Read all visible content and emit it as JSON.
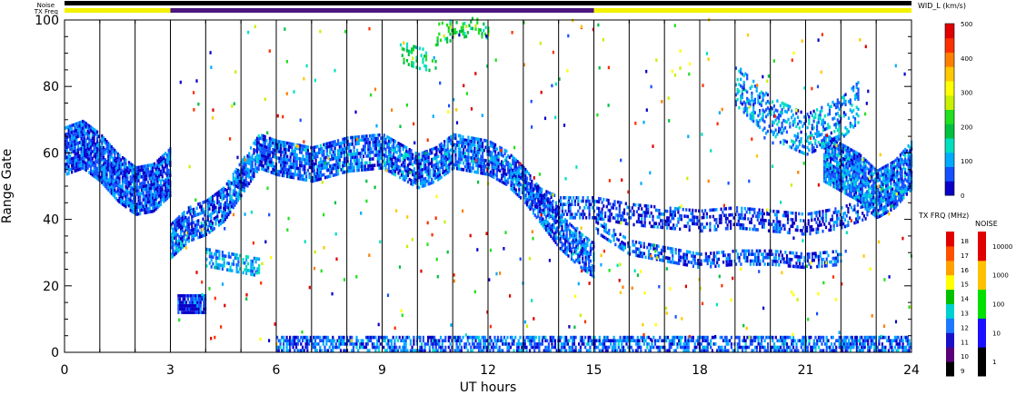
{
  "header": {
    "noise_label": "Noise",
    "txfreq_label": "TX Freq",
    "width_label": "WID_L (km/s)"
  },
  "chart_data": {
    "type": "heatmap",
    "xlabel": "UT hours",
    "ylabel": "Range Gate",
    "xlim": [
      0,
      24
    ],
    "ylim": [
      0,
      100
    ],
    "x_ticks": [
      "0",
      "3",
      "6",
      "9",
      "12",
      "15",
      "18",
      "21",
      "24"
    ],
    "y_ticks": [
      "0",
      "20",
      "40",
      "60",
      "80",
      "100"
    ],
    "hour_lines": [
      1,
      2,
      3,
      4,
      5,
      6,
      7,
      8,
      9,
      10,
      11,
      12,
      13,
      14,
      15,
      16,
      17,
      18,
      19,
      20,
      21,
      22,
      23
    ],
    "noise_bar": [
      {
        "start": 0,
        "end": 24,
        "color": "#000000"
      }
    ],
    "txfreq_bar": [
      {
        "start": 0,
        "end": 3,
        "color": "#f2f200"
      },
      {
        "start": 3,
        "end": 15,
        "color": "#4b1780"
      },
      {
        "start": 15,
        "end": 24,
        "color": "#f2f200"
      }
    ],
    "bands": [
      {
        "points": [
          [
            0,
            60
          ],
          [
            0.5,
            62
          ],
          [
            1,
            58
          ],
          [
            1.5,
            52
          ],
          [
            2,
            48
          ],
          [
            2.5,
            49
          ],
          [
            3,
            54
          ]
        ],
        "width": 14,
        "density": 0.9,
        "value": 60
      },
      {
        "points": [
          [
            3,
            33
          ],
          [
            3.5,
            38
          ],
          [
            4,
            40
          ],
          [
            4.5,
            44
          ],
          [
            5,
            52
          ],
          [
            5.5,
            60
          ],
          [
            6,
            58
          ],
          [
            7,
            56
          ],
          [
            8,
            59
          ],
          [
            9,
            60
          ],
          [
            10,
            54
          ],
          [
            10.5,
            56
          ],
          [
            11,
            60
          ],
          [
            12,
            58
          ],
          [
            12.5,
            55
          ],
          [
            13,
            50
          ],
          [
            14,
            36
          ],
          [
            14.5,
            31
          ],
          [
            15,
            27
          ]
        ],
        "width": 10,
        "density": 0.75,
        "value": 70
      },
      {
        "points": [
          [
            13,
            48
          ],
          [
            14,
            43
          ],
          [
            15,
            43
          ],
          [
            16,
            41
          ],
          [
            17,
            40
          ],
          [
            18,
            39
          ],
          [
            19,
            40
          ],
          [
            20,
            39
          ],
          [
            21,
            38
          ],
          [
            22,
            40
          ],
          [
            23,
            44
          ]
        ],
        "width": 6,
        "density": 0.45,
        "value": 50
      },
      {
        "points": [
          [
            15,
            38
          ],
          [
            16,
            31
          ],
          [
            17,
            29
          ],
          [
            18,
            27
          ],
          [
            19,
            28
          ],
          [
            20,
            28
          ],
          [
            21,
            27
          ],
          [
            22,
            28
          ]
        ],
        "width": 4,
        "density": 0.5,
        "value": 60
      },
      {
        "points": [
          [
            21.5,
            58
          ],
          [
            22,
            55
          ],
          [
            22.5,
            52
          ],
          [
            23,
            47
          ],
          [
            23.5,
            50
          ],
          [
            24,
            56
          ]
        ],
        "width": 14,
        "density": 0.85,
        "value": 80
      },
      {
        "points": [
          [
            19,
            80
          ],
          [
            20,
            70
          ],
          [
            21,
            65
          ],
          [
            22,
            70
          ],
          [
            22.5,
            75
          ]
        ],
        "width": 12,
        "density": 0.35,
        "value": 90
      },
      {
        "points": [
          [
            3.2,
            14
          ],
          [
            4,
            14
          ]
        ],
        "width": 5,
        "density": 0.9,
        "value": 40
      },
      {
        "points": [
          [
            4,
            28
          ],
          [
            5,
            26
          ],
          [
            5.5,
            25
          ]
        ],
        "width": 5,
        "density": 0.5,
        "value": 110
      },
      {
        "points": [
          [
            6,
            2
          ],
          [
            9,
            2
          ],
          [
            12,
            2
          ],
          [
            15,
            2
          ],
          [
            18,
            2
          ],
          [
            21,
            2
          ],
          [
            24,
            2
          ]
        ],
        "width": 4,
        "density": 0.6,
        "value": 70
      },
      {
        "points": [
          [
            10.5,
            95
          ],
          [
            11.5,
            98
          ],
          [
            12,
            97
          ]
        ],
        "width": 6,
        "density": 0.3,
        "value": 200
      },
      {
        "points": [
          [
            9.5,
            90
          ],
          [
            10,
            88
          ],
          [
            10.5,
            87
          ]
        ],
        "width": 6,
        "density": 0.25,
        "value": 180
      }
    ],
    "scatter_noise": {
      "count": 420,
      "xlim": [
        3.2,
        24
      ],
      "ylim": [
        2,
        100
      ]
    },
    "colorbar_width": {
      "title": "WID_L (km/s)",
      "range": [
        0,
        500
      ],
      "ticks": [
        "0",
        "100",
        "200",
        "300",
        "400",
        "500"
      ],
      "colors": [
        "#0a00c8",
        "#1450ff",
        "#00aaff",
        "#00e0c0",
        "#00c040",
        "#20e020",
        "#c8f000",
        "#ffff00",
        "#ffc800",
        "#ff8000",
        "#ff3000",
        "#e00000"
      ]
    },
    "colorbar_txfreq": {
      "title": "TX FRQ (MHz)",
      "ticks": [
        "9",
        "10",
        "11",
        "12",
        "13",
        "14",
        "15",
        "16",
        "17",
        "18"
      ],
      "colors": [
        "#000000",
        "#5a0078",
        "#1a10c8",
        "#1e78ff",
        "#00d0d0",
        "#00c000",
        "#ffff00",
        "#ffa000",
        "#ff5000",
        "#e00000"
      ]
    },
    "colorbar_noise": {
      "title": "NOISE",
      "ticks": [
        "1",
        "10",
        "100",
        "1000",
        "10000"
      ],
      "colors": [
        "#000000",
        "#1a10ff",
        "#00e000",
        "#ffc000",
        "#e00000"
      ]
    }
  }
}
